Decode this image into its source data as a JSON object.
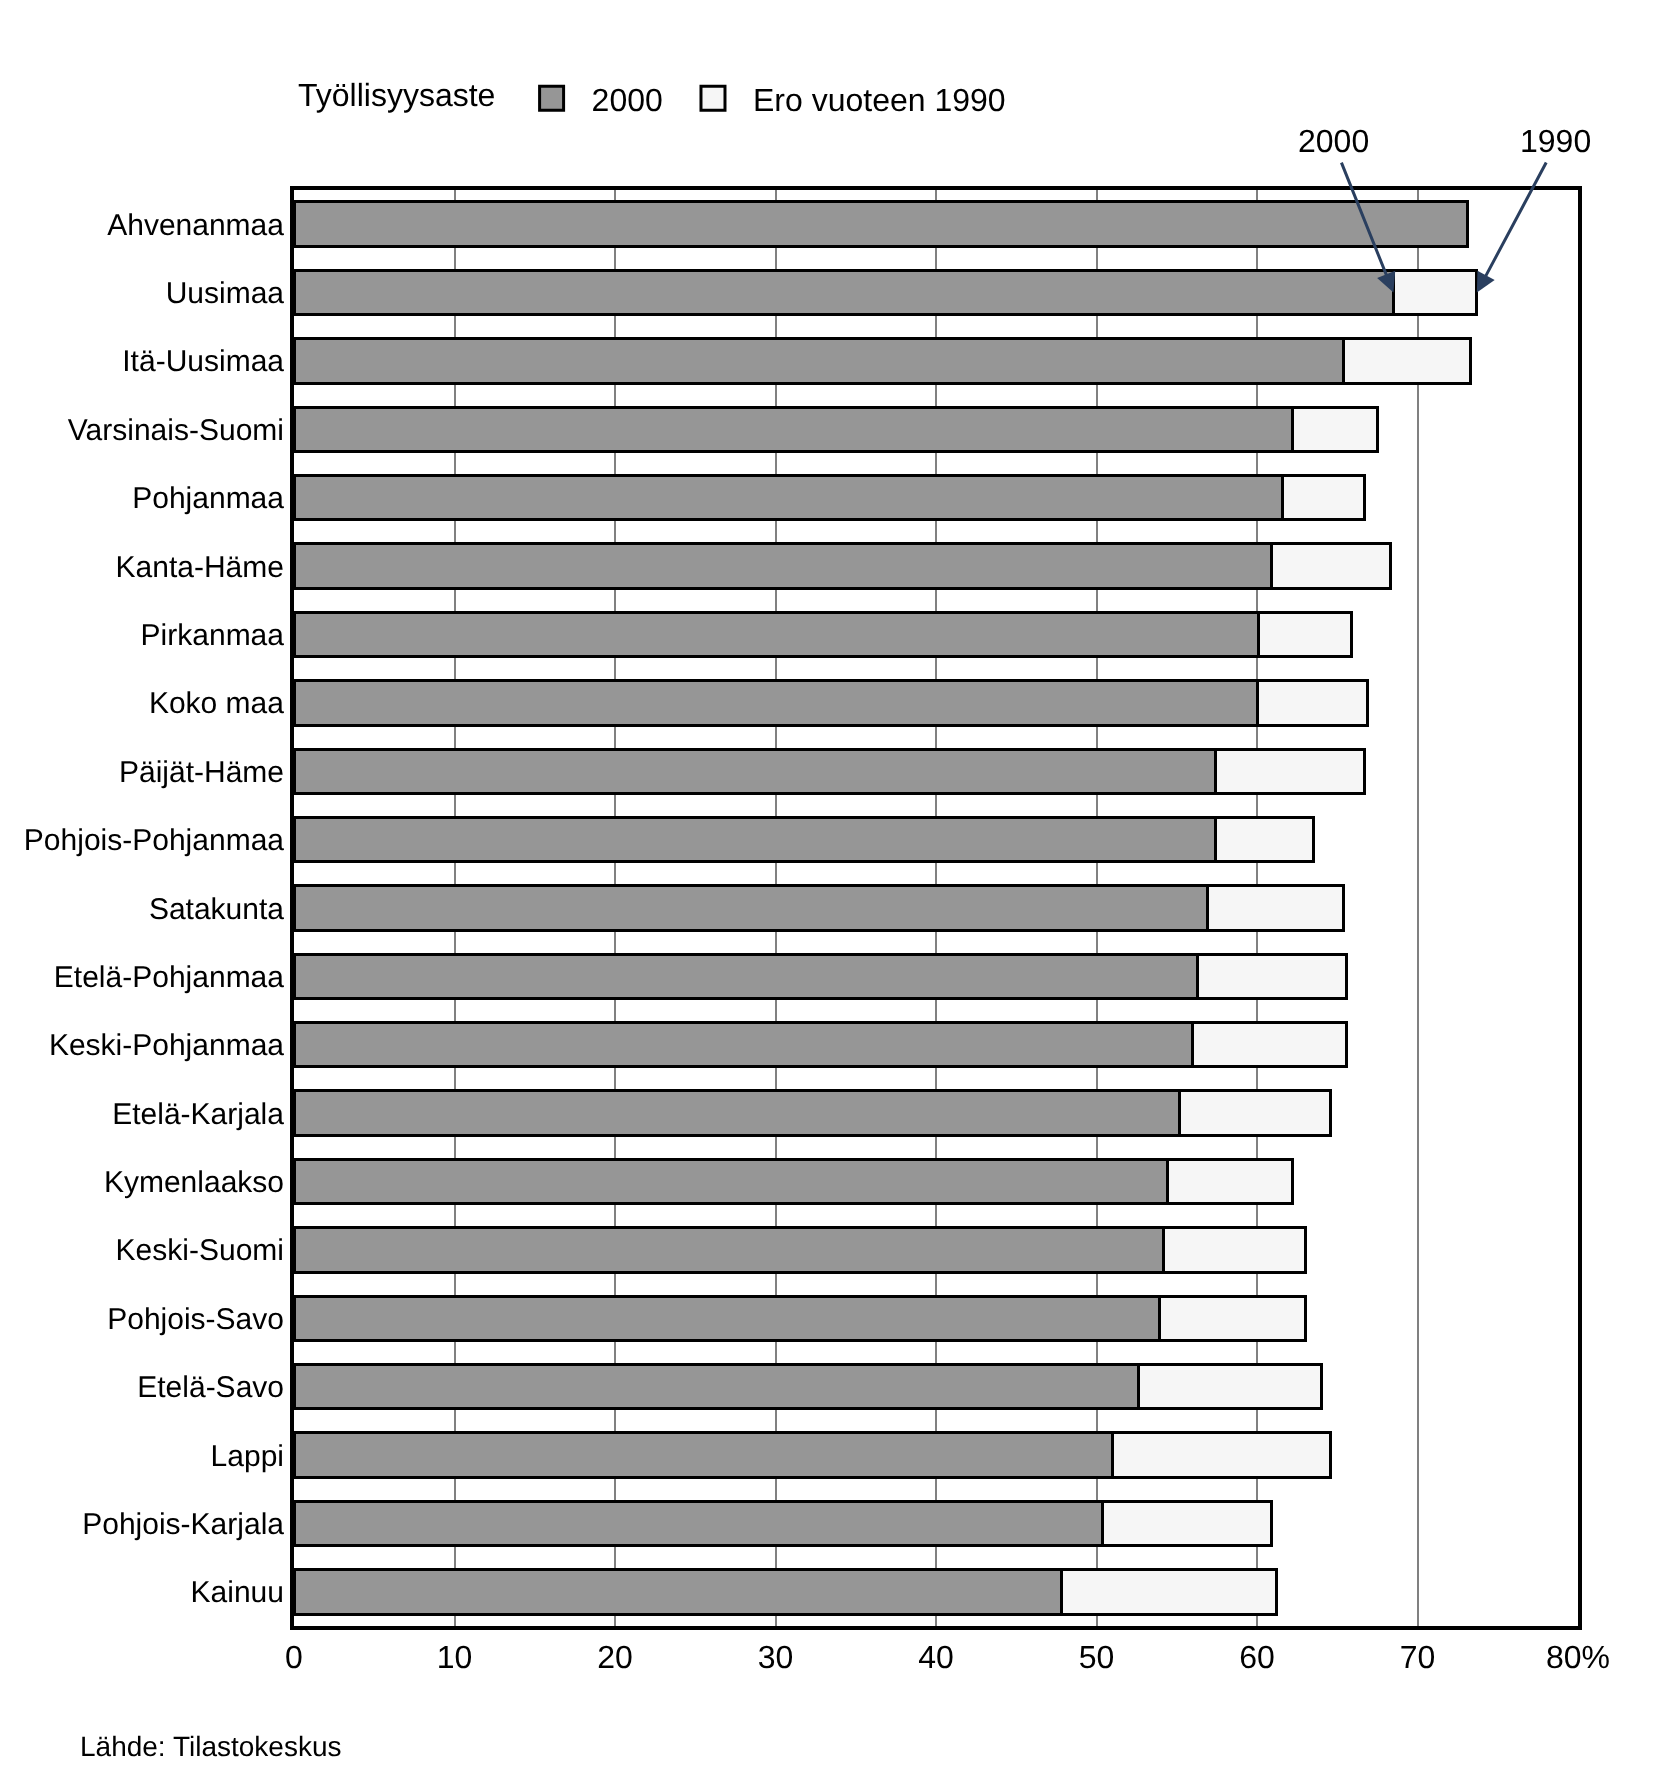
{
  "chart_data": {
    "type": "bar",
    "orientation": "horizontal",
    "stacked": true,
    "legend_title": "Työllisyysaste",
    "legend": "top",
    "categories": [
      "Ahvenanmaa",
      "Uusimaa",
      "Itä-Uusimaa",
      "Varsinais-Suomi",
      "Pohjanmaa",
      "Kanta-Häme",
      "Pirkanmaa",
      "Koko maa",
      "Päijät-Häme",
      "Pohjois-Pohjanmaa",
      "Satakunta",
      "Etelä-Pohjanmaa",
      "Keski-Pohjanmaa",
      "Etelä-Karjala",
      "Kymenlaakso",
      "Keski-Suomi",
      "Pohjois-Savo",
      "Etelä-Savo",
      "Lappi",
      "Pohjois-Karjala",
      "Kainuu"
    ],
    "series": [
      {
        "name": "2000",
        "color": "#969696",
        "values": [
          73.1,
          68.5,
          65.4,
          62.2,
          61.6,
          60.9,
          60.1,
          60.0,
          57.4,
          57.4,
          56.9,
          56.3,
          56.0,
          55.2,
          54.4,
          54.2,
          53.9,
          52.6,
          51.0,
          50.4,
          47.8
        ]
      },
      {
        "name": "Ero vuoteen 1990",
        "color": "#f6f6f6",
        "values": [
          null,
          5.2,
          7.9,
          5.3,
          5.1,
          7.4,
          5.8,
          6.9,
          9.3,
          6.1,
          8.5,
          9.3,
          9.6,
          9.4,
          7.8,
          8.8,
          9.1,
          11.4,
          13.6,
          10.5,
          13.4
        ]
      }
    ],
    "xlim": [
      0,
      80
    ],
    "xticks": [
      0,
      10,
      20,
      30,
      40,
      50,
      60,
      70,
      {
        "value": 80,
        "label": "80%"
      }
    ],
    "grid": "x",
    "annotations": [
      {
        "text": "2000",
        "x": 68.5,
        "y": "Uusimaa"
      },
      {
        "text": "1990",
        "x": 73.7,
        "y": "Uusimaa"
      },
      "Lähde: Tilastokeskus"
    ]
  }
}
